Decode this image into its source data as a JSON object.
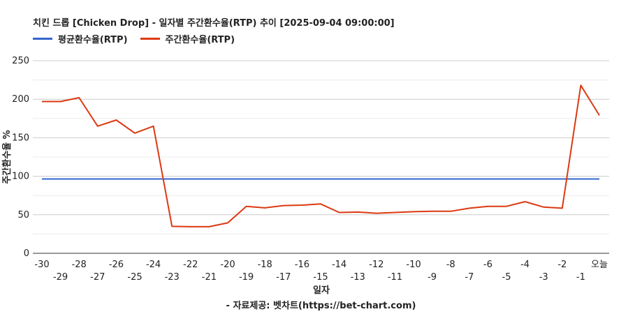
{
  "chart_data": {
    "type": "line",
    "title": "치킨 드롭 [Chicken Drop] - 일자별 주간환수율(RTP) 추이 [2025-09-04 09:00:00]",
    "xlabel": "일자",
    "ylabel": "주간환수율 %",
    "ylim": [
      0,
      250
    ],
    "yticks": [
      0,
      50,
      100,
      150,
      200,
      250
    ],
    "grid": true,
    "legend_position": "top-left",
    "x": [
      "-30",
      "-29",
      "-28",
      "-27",
      "-26",
      "-25",
      "-24",
      "-23",
      "-22",
      "-21",
      "-20",
      "-19",
      "-18",
      "-17",
      "-16",
      "-15",
      "-14",
      "-13",
      "-12",
      "-11",
      "-10",
      "-9",
      "-8",
      "-7",
      "-6",
      "-5",
      "-4",
      "-3",
      "-2",
      "-1",
      "오늘"
    ],
    "series": [
      {
        "name": "평균환수율(RTP)",
        "color": "#3366cc",
        "values": [
          96.5,
          96.5,
          96.5,
          96.5,
          96.5,
          96.5,
          96.5,
          96.5,
          96.5,
          96.5,
          96.5,
          96.5,
          96.5,
          96.5,
          96.5,
          96.5,
          96.5,
          96.5,
          96.5,
          96.5,
          96.5,
          96.5,
          96.5,
          96.5,
          96.5,
          96.5,
          96.5,
          96.5,
          96.5,
          96.5,
          96.5
        ]
      },
      {
        "name": "주간환수율(RTP)",
        "color": "#dc3912",
        "values": [
          197,
          197,
          202,
          165,
          173,
          156,
          165,
          35,
          34.5,
          34.5,
          39.5,
          61,
          59,
          62,
          62.5,
          64,
          53,
          53.5,
          52,
          53,
          54,
          54.5,
          54.5,
          58.5,
          61,
          61,
          67,
          60,
          58.5,
          218,
          179
        ]
      }
    ]
  },
  "source": "- 자료제공: 벳차트(https://bet-chart.com)"
}
